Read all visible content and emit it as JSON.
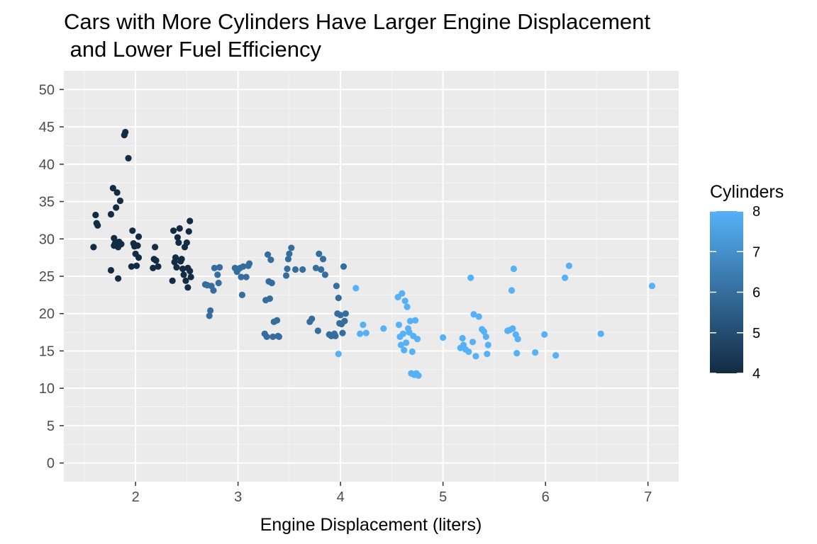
{
  "chart_data": {
    "type": "scatter",
    "title_lines": [
      "Cars with More Cylinders Have Larger Engine Displacement",
      " and Lower Fuel Efficiency"
    ],
    "xlabel": "Engine Displacement (liters)",
    "ylabel": "",
    "xlim": [
      1.3,
      7.3
    ],
    "ylim": [
      -2.5,
      52.5
    ],
    "x_ticks": [
      2,
      3,
      4,
      5,
      6,
      7
    ],
    "y_ticks": [
      0,
      5,
      10,
      15,
      20,
      25,
      30,
      35,
      40,
      45,
      50
    ],
    "grid": true,
    "legend": {
      "title": "Cylinders",
      "type": "colorbar",
      "range": [
        4,
        8
      ],
      "ticks": [
        4,
        5,
        6,
        7,
        8
      ],
      "placement": "right",
      "low_color": "#132b43",
      "high_color": "#56b1f7"
    },
    "colors": {
      "panel_background": "#ebebeb",
      "grid_major": "#ffffff",
      "grid_minor": "#f5f5f5"
    },
    "points": [
      [
        1.59,
        28.9,
        4
      ],
      [
        1.61,
        33.2,
        4
      ],
      [
        1.62,
        32.1,
        4
      ],
      [
        1.63,
        31.8,
        4
      ],
      [
        1.76,
        25.8,
        4
      ],
      [
        1.76,
        33.3,
        4
      ],
      [
        1.78,
        36.8,
        4
      ],
      [
        1.79,
        29.1,
        4
      ],
      [
        1.79,
        30.1,
        4
      ],
      [
        1.8,
        29.4,
        4
      ],
      [
        1.81,
        34.2,
        4
      ],
      [
        1.82,
        36.2,
        4
      ],
      [
        1.83,
        28.9,
        4
      ],
      [
        1.83,
        24.7,
        4
      ],
      [
        1.84,
        29.6,
        4
      ],
      [
        1.85,
        35.1,
        4
      ],
      [
        1.86,
        29.3,
        4
      ],
      [
        1.89,
        43.9,
        4
      ],
      [
        1.9,
        44.3,
        4
      ],
      [
        1.93,
        40.8,
        4
      ],
      [
        1.96,
        26.3,
        4
      ],
      [
        1.97,
        31.1,
        4
      ],
      [
        1.98,
        29.4,
        4
      ],
      [
        1.99,
        29.0,
        4
      ],
      [
        2.0,
        28.0,
        4
      ],
      [
        2.01,
        26.4,
        4
      ],
      [
        2.02,
        29.1,
        4
      ],
      [
        2.03,
        30.3,
        4
      ],
      [
        2.03,
        27.5,
        4
      ],
      [
        2.17,
        26.1,
        4
      ],
      [
        2.18,
        27.3,
        4
      ],
      [
        2.19,
        28.9,
        4
      ],
      [
        2.2,
        27.1,
        4
      ],
      [
        2.22,
        26.3,
        4
      ],
      [
        2.36,
        24.4,
        4
      ],
      [
        2.37,
        31.1,
        4
      ],
      [
        2.38,
        26.9,
        4
      ],
      [
        2.39,
        27.5,
        4
      ],
      [
        2.4,
        26.2,
        4
      ],
      [
        2.41,
        30.2,
        4
      ],
      [
        2.42,
        29.5,
        4
      ],
      [
        2.43,
        31.4,
        4
      ],
      [
        2.44,
        27.0,
        4
      ],
      [
        2.45,
        27.3,
        4
      ],
      [
        2.46,
        26.0,
        4
      ],
      [
        2.47,
        25.2,
        4
      ],
      [
        2.48,
        28.9,
        4
      ],
      [
        2.49,
        24.4,
        4
      ],
      [
        2.5,
        29.5,
        4
      ],
      [
        2.51,
        26.1,
        4
      ],
      [
        2.51,
        23.5,
        4
      ],
      [
        2.52,
        31.0,
        4
      ],
      [
        2.53,
        32.4,
        4
      ],
      [
        2.53,
        25.7,
        4
      ],
      [
        2.54,
        24.9,
        4
      ],
      [
        2.68,
        23.9,
        6
      ],
      [
        2.7,
        23.8,
        6
      ],
      [
        2.72,
        19.7,
        6
      ],
      [
        2.73,
        20.4,
        6
      ],
      [
        2.74,
        23.7,
        6
      ],
      [
        2.76,
        23.1,
        6
      ],
      [
        2.77,
        26.1,
        6
      ],
      [
        2.8,
        25.2,
        6
      ],
      [
        2.81,
        24.1,
        6
      ],
      [
        2.82,
        26.2,
        6
      ],
      [
        2.97,
        26.1,
        6
      ],
      [
        2.99,
        25.6,
        6
      ],
      [
        3.0,
        25.9,
        6
      ],
      [
        3.02,
        26.1,
        6
      ],
      [
        3.03,
        24.9,
        6
      ],
      [
        3.04,
        22.5,
        6
      ],
      [
        3.05,
        26.3,
        6
      ],
      [
        3.08,
        24.9,
        6
      ],
      [
        3.1,
        26.4,
        6
      ],
      [
        3.11,
        26.7,
        6
      ],
      [
        3.26,
        17.3,
        6
      ],
      [
        3.27,
        21.8,
        6
      ],
      [
        3.28,
        16.9,
        6
      ],
      [
        3.29,
        27.9,
        6
      ],
      [
        3.3,
        24.3,
        6
      ],
      [
        3.31,
        22.0,
        6
      ],
      [
        3.32,
        27.2,
        6
      ],
      [
        3.33,
        24.1,
        6
      ],
      [
        3.34,
        16.9,
        6
      ],
      [
        3.35,
        18.9,
        6
      ],
      [
        3.38,
        19.1,
        6
      ],
      [
        3.39,
        17.0,
        6
      ],
      [
        3.4,
        16.9,
        6
      ],
      [
        3.47,
        25.1,
        6
      ],
      [
        3.48,
        26.0,
        6
      ],
      [
        3.49,
        27.3,
        6
      ],
      [
        3.5,
        28.0,
        6
      ],
      [
        3.52,
        28.8,
        6
      ],
      [
        3.56,
        25.9,
        6
      ],
      [
        3.63,
        25.9,
        6
      ],
      [
        3.7,
        18.9,
        6
      ],
      [
        3.72,
        19.3,
        6
      ],
      [
        3.76,
        26.1,
        6
      ],
      [
        3.78,
        17.7,
        6
      ],
      [
        3.79,
        28.0,
        6
      ],
      [
        3.81,
        25.9,
        6
      ],
      [
        3.83,
        27.3,
        6
      ],
      [
        3.85,
        25.2,
        6
      ],
      [
        3.89,
        17.2,
        6
      ],
      [
        3.91,
        17.0,
        6
      ],
      [
        3.93,
        17.1,
        6
      ],
      [
        3.94,
        17.3,
        6
      ],
      [
        3.95,
        17.0,
        6
      ],
      [
        3.96,
        23.7,
        6
      ],
      [
        3.97,
        20.0,
        6
      ],
      [
        3.98,
        22.1,
        6
      ],
      [
        3.99,
        18.7,
        6
      ],
      [
        4.0,
        19.8,
        6
      ],
      [
        4.01,
        18.6,
        6
      ],
      [
        4.02,
        17.4,
        6
      ],
      [
        4.03,
        26.3,
        6
      ],
      [
        4.04,
        19.0,
        6
      ],
      [
        4.05,
        20.0,
        6
      ],
      [
        3.98,
        14.6,
        8
      ],
      [
        4.15,
        23.4,
        8
      ],
      [
        4.19,
        17.3,
        8
      ],
      [
        4.22,
        18.5,
        8
      ],
      [
        4.25,
        17.4,
        8
      ],
      [
        4.42,
        18.0,
        8
      ],
      [
        4.56,
        22.2,
        8
      ],
      [
        4.57,
        18.5,
        8
      ],
      [
        4.58,
        16.9,
        8
      ],
      [
        4.59,
        15.8,
        8
      ],
      [
        4.6,
        22.7,
        8
      ],
      [
        4.61,
        17.3,
        8
      ],
      [
        4.62,
        15.1,
        8
      ],
      [
        4.63,
        21.7,
        8
      ],
      [
        4.64,
        16.1,
        8
      ],
      [
        4.65,
        20.9,
        8
      ],
      [
        4.66,
        18.0,
        8
      ],
      [
        4.67,
        17.5,
        8
      ],
      [
        4.68,
        19.0,
        8
      ],
      [
        4.69,
        12.0,
        8
      ],
      [
        4.7,
        14.9,
        8
      ],
      [
        4.71,
        17.0,
        8
      ],
      [
        4.72,
        11.8,
        8
      ],
      [
        4.73,
        19.1,
        8
      ],
      [
        4.74,
        12.0,
        8
      ],
      [
        4.75,
        16.6,
        8
      ],
      [
        4.76,
        11.7,
        8
      ],
      [
        5.0,
        16.8,
        8
      ],
      [
        5.17,
        15.4,
        8
      ],
      [
        5.19,
        16.7,
        8
      ],
      [
        5.2,
        15.8,
        8
      ],
      [
        5.22,
        15.2,
        8
      ],
      [
        5.25,
        14.9,
        8
      ],
      [
        5.27,
        24.8,
        8
      ],
      [
        5.29,
        16.2,
        8
      ],
      [
        5.3,
        19.9,
        8
      ],
      [
        5.32,
        14.3,
        8
      ],
      [
        5.35,
        19.6,
        8
      ],
      [
        5.38,
        17.9,
        8
      ],
      [
        5.4,
        17.6,
        8
      ],
      [
        5.42,
        16.9,
        8
      ],
      [
        5.43,
        14.6,
        8
      ],
      [
        5.44,
        15.8,
        8
      ],
      [
        5.63,
        17.7,
        8
      ],
      [
        5.65,
        17.8,
        8
      ],
      [
        5.67,
        23.1,
        8
      ],
      [
        5.68,
        18.0,
        8
      ],
      [
        5.69,
        26.0,
        8
      ],
      [
        5.71,
        17.2,
        8
      ],
      [
        5.72,
        14.7,
        8
      ],
      [
        5.73,
        16.6,
        8
      ],
      [
        5.9,
        14.8,
        8
      ],
      [
        5.99,
        17.2,
        8
      ],
      [
        6.1,
        14.4,
        8
      ],
      [
        6.19,
        24.8,
        8
      ],
      [
        6.23,
        26.4,
        8
      ],
      [
        6.54,
        17.3,
        8
      ],
      [
        7.04,
        23.7,
        8
      ]
    ]
  }
}
